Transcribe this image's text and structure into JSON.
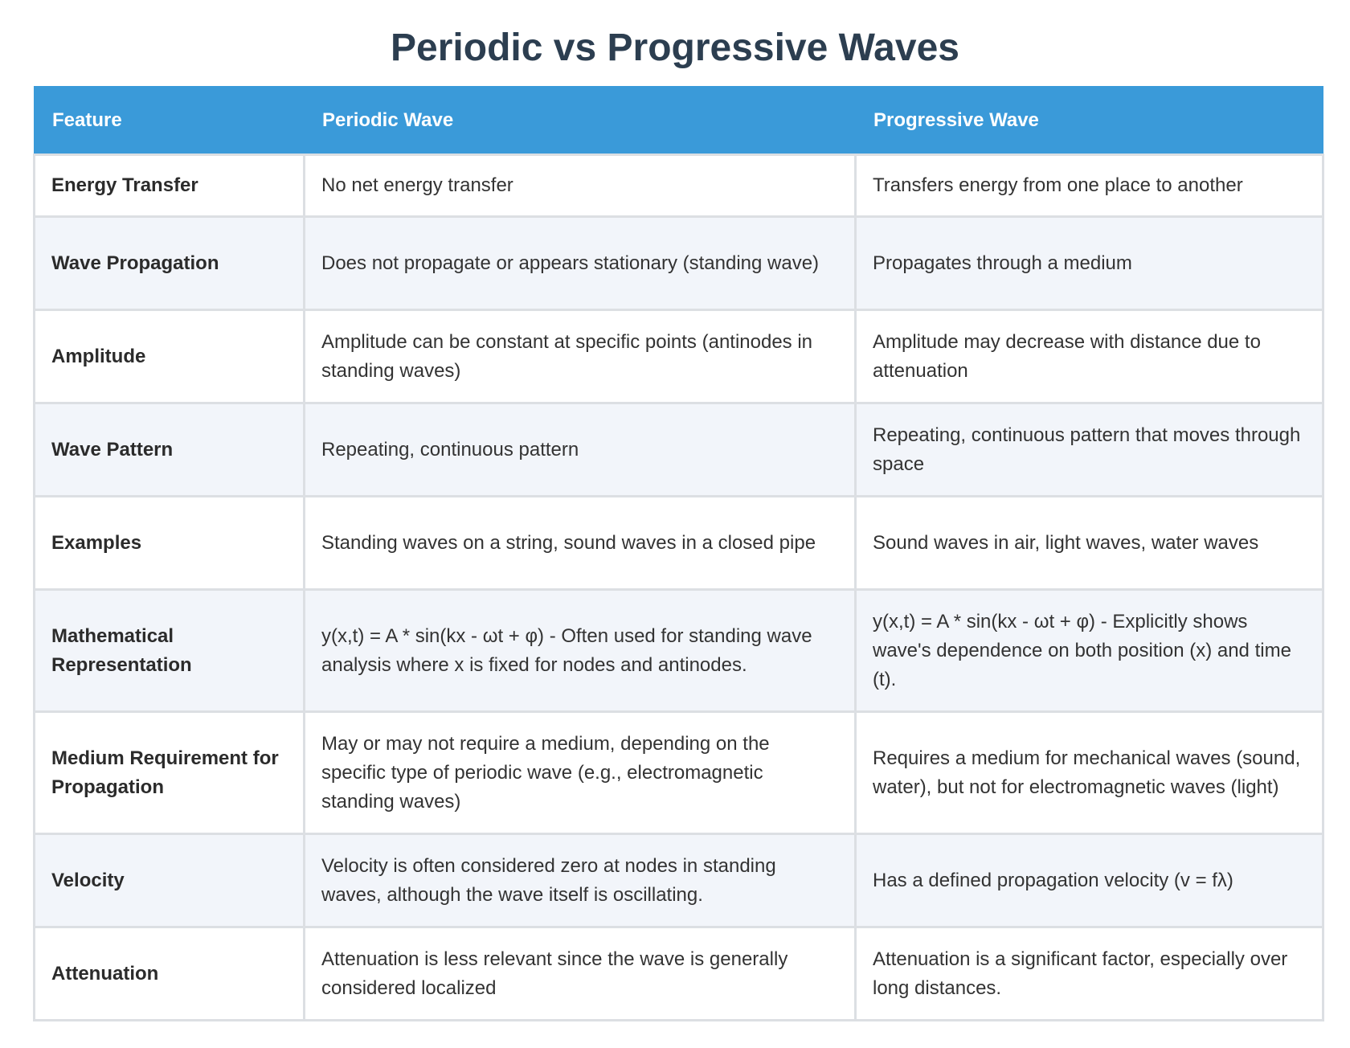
{
  "title": "Periodic vs Progressive Waves",
  "table": {
    "headers": [
      "Feature",
      "Periodic Wave",
      "Progressive Wave"
    ],
    "rows": [
      {
        "feature": "Energy Transfer",
        "periodic": "No net energy transfer",
        "progressive": "Transfers energy from one place to another"
      },
      {
        "feature": "Wave Propagation",
        "periodic": "Does not propagate or appears stationary (standing wave)",
        "progressive": "Propagates through a medium"
      },
      {
        "feature": "Amplitude",
        "periodic": "Amplitude can be constant at specific points (antinodes in standing waves)",
        "progressive": "Amplitude may decrease with distance due to attenuation"
      },
      {
        "feature": "Wave Pattern",
        "periodic": "Repeating, continuous pattern",
        "progressive": "Repeating, continuous pattern that moves through space"
      },
      {
        "feature": "Examples",
        "periodic": "Standing waves on a string, sound waves in a closed pipe",
        "progressive": "Sound waves in air, light waves, water waves"
      },
      {
        "feature": "Mathematical Representation",
        "periodic": "y(x,t) = A * sin(kx - ωt + φ) - Often used for standing wave analysis where x is fixed for nodes and antinodes.",
        "progressive": "y(x,t) = A * sin(kx - ωt + φ) - Explicitly shows wave's dependence on both position (x) and time (t)."
      },
      {
        "feature": "Medium Requirement for Propagation",
        "periodic": "May or may not require a medium, depending on the specific type of periodic wave (e.g., electromagnetic standing waves)",
        "progressive": "Requires a medium for mechanical waves (sound, water), but not for electromagnetic waves (light)"
      },
      {
        "feature": "Velocity",
        "periodic": "Velocity is often considered zero at nodes in standing waves, although the wave itself is oscillating.",
        "progressive": "Has a defined propagation velocity (v = fλ)"
      },
      {
        "feature": "Attenuation",
        "periodic": "Attenuation is less relevant since the wave is generally considered localized",
        "progressive": "Attenuation is a significant factor, especially over long distances."
      }
    ]
  }
}
